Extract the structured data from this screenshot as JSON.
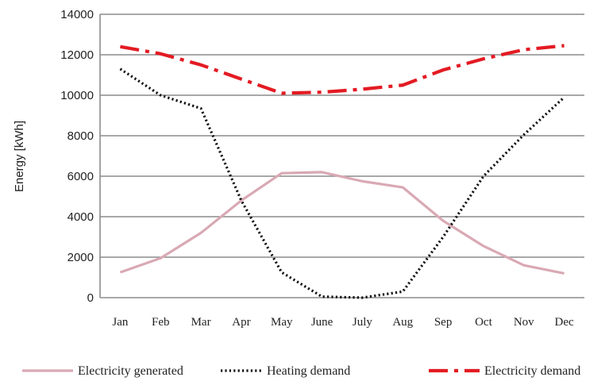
{
  "chart_data": {
    "type": "line",
    "title": "",
    "xlabel": "",
    "ylabel": "Energy [kWh]",
    "ylim": [
      0,
      14000
    ],
    "yticks": [
      "0",
      "2000",
      "4000",
      "6000",
      "8000",
      "10000",
      "12000",
      "14000"
    ],
    "categories": [
      "Jan",
      "Feb",
      "Mar",
      "Apr",
      "May",
      "June",
      "July",
      "Aug",
      "Sep",
      "Oct",
      "Nov",
      "Dec"
    ],
    "grid": "horizontal",
    "legend_position": "bottom",
    "series": [
      {
        "name": "Electricity generated",
        "color": "#d9a9b4",
        "style": "solid",
        "values": [
          1250,
          1950,
          3200,
          4800,
          6150,
          6200,
          5750,
          5450,
          3800,
          2550,
          1600,
          1200
        ]
      },
      {
        "name": "Heating demand",
        "color": "#111111",
        "style": "dotted",
        "values": [
          11300,
          10000,
          9350,
          4800,
          1250,
          50,
          0,
          300,
          3000,
          6000,
          8050,
          9900
        ]
      },
      {
        "name": "Electricity demand",
        "color": "#e31b23",
        "style": "dash-dot",
        "values": [
          12400,
          12050,
          11500,
          10800,
          10100,
          10150,
          10300,
          10500,
          11250,
          11800,
          12250,
          12450
        ]
      }
    ]
  }
}
